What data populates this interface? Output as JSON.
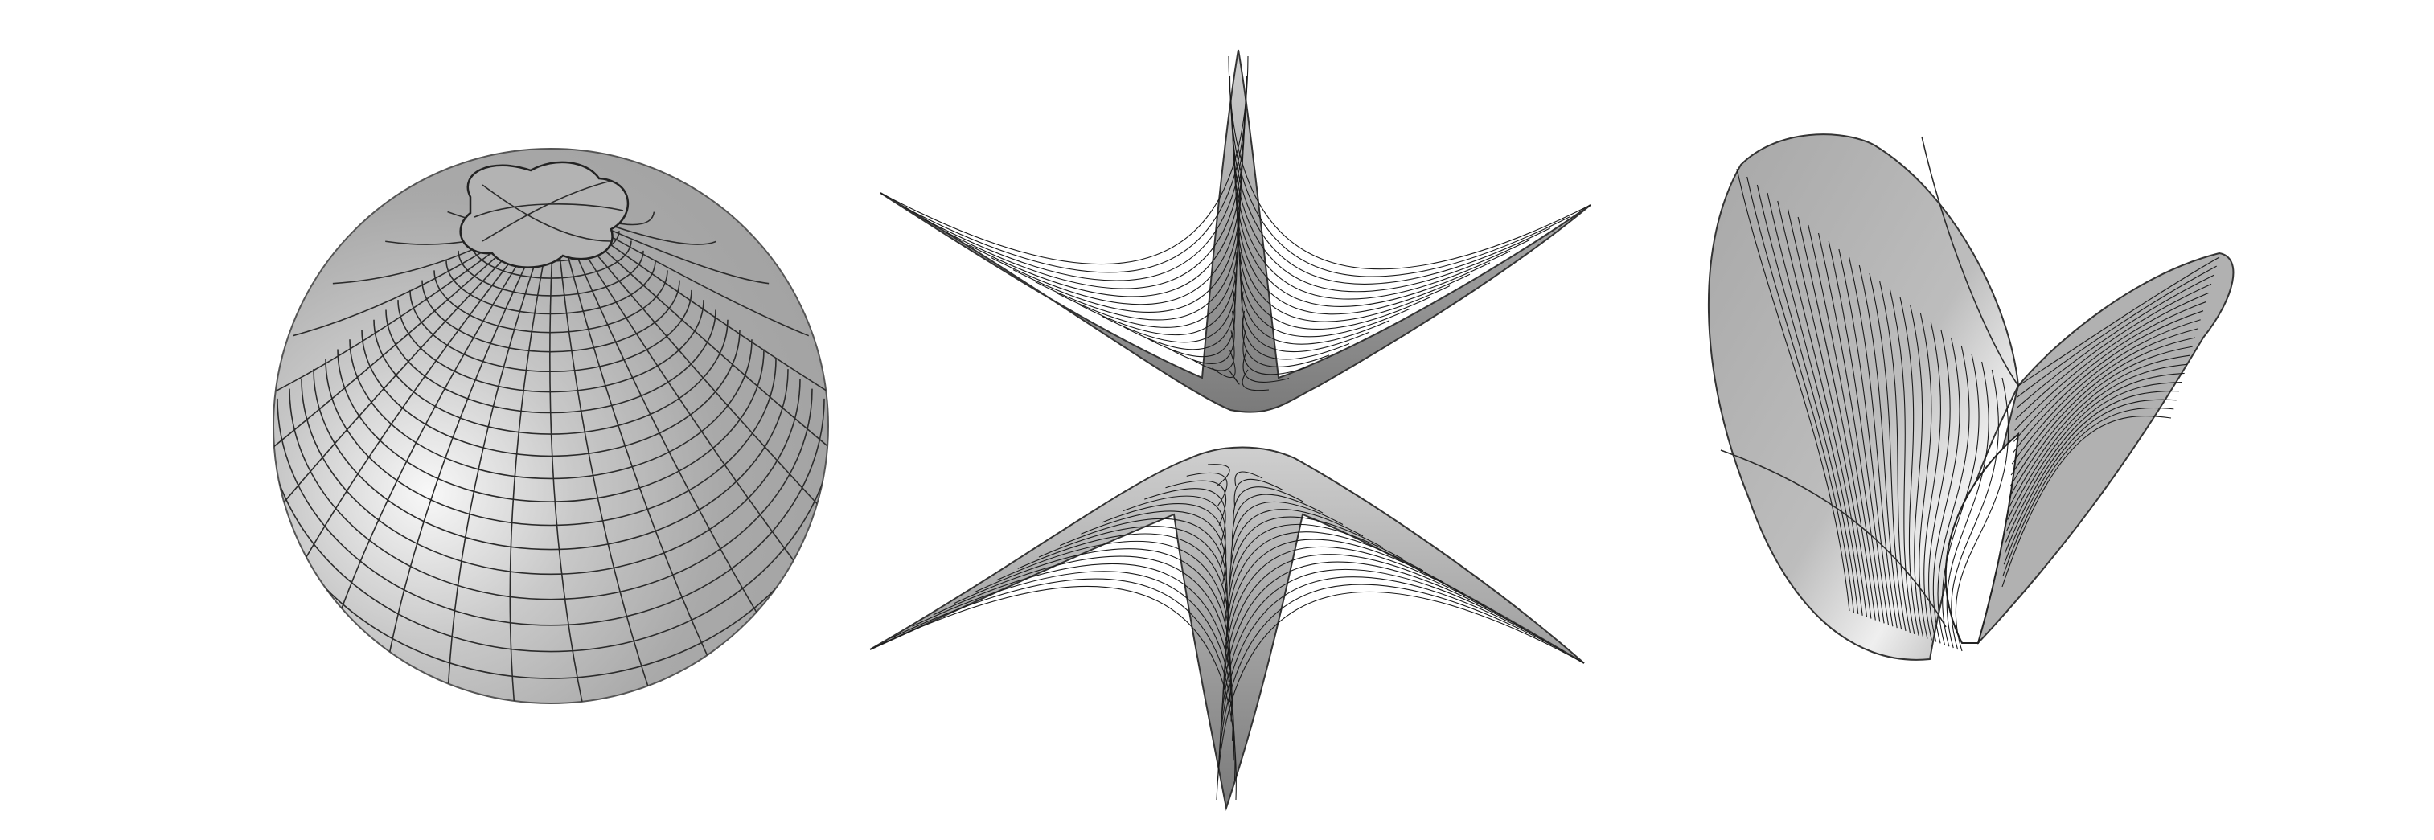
{
  "figure": {
    "panels": [
      {
        "id": "sphere",
        "kind": "sphere-surface"
      },
      {
        "id": "pseudosphere",
        "kind": "double-cusp-surface"
      },
      {
        "id": "saddle",
        "kind": "twisted-surface"
      }
    ],
    "colors": {
      "background": "#ffffff",
      "surface": "#a9a9a9",
      "highlight": "#f4f4f4",
      "mesh": "#2b2b2b"
    }
  }
}
